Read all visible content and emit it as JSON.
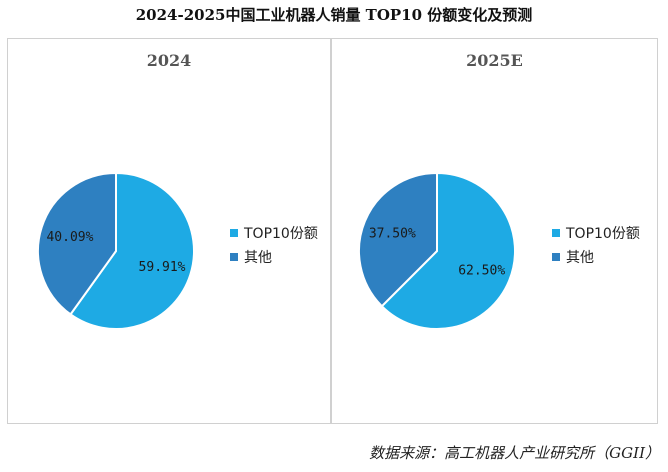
{
  "title": "2024-2025中国工业机器人销量 TOP10 份额变化及预测",
  "source": "数据来源：高工机器人产业研究所（GGII）",
  "colors": {
    "top10": "#1eaae4",
    "other": "#2e80c1"
  },
  "chart_data": [
    {
      "type": "pie",
      "title": "2024",
      "categories": [
        "TOP10份额",
        "其他"
      ],
      "values": [
        59.91,
        40.09
      ],
      "labels": [
        "59.91%",
        "40.09%"
      ],
      "legend": "right"
    },
    {
      "type": "pie",
      "title": "2025E",
      "categories": [
        "TOP10份额",
        "其他"
      ],
      "values": [
        62.5,
        37.5
      ],
      "labels": [
        "62.50%",
        "37.50%"
      ],
      "legend": "right"
    }
  ]
}
